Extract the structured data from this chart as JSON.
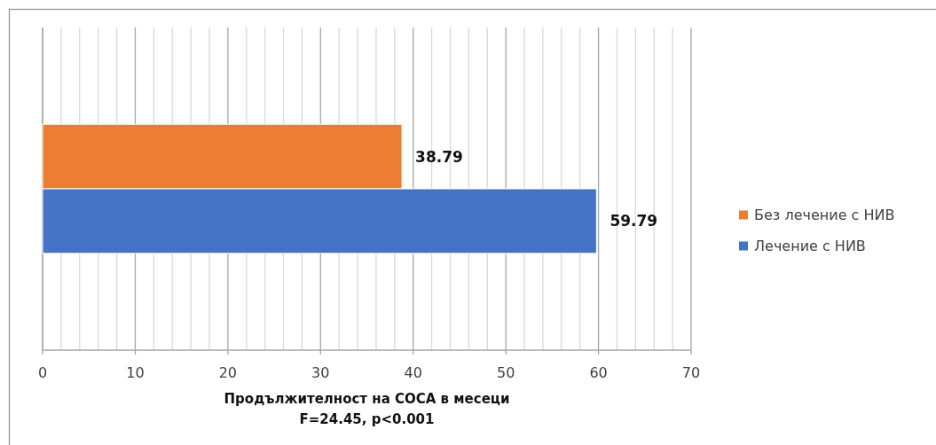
{
  "chart_data": {
    "type": "bar",
    "orientation": "horizontal",
    "categories": [
      null
    ],
    "series": [
      {
        "name": "Без лечение с НИВ",
        "color": "#ed7d31",
        "values": [
          38.79
        ]
      },
      {
        "name": "Лечение с НИВ",
        "color": "#4472c4",
        "values": [
          59.79
        ]
      }
    ],
    "xlim": [
      0,
      70
    ],
    "xticks": [
      0,
      {
        "value": 2,
        "label": null
      },
      {
        "value": 4,
        "label": null
      },
      {
        "value": 6,
        "label": null
      },
      {
        "value": 8,
        "label": null
      },
      10,
      {
        "value": 12,
        "label": null
      },
      {
        "value": 14,
        "label": null
      },
      {
        "value": 16,
        "label": null
      },
      {
        "value": 18,
        "label": null
      },
      20,
      {
        "value": 22,
        "label": null
      },
      {
        "value": 24,
        "label": null
      },
      {
        "value": 26,
        "label": null
      },
      {
        "value": 28,
        "label": null
      },
      30,
      {
        "value": 32,
        "label": null
      },
      {
        "value": 34,
        "label": null
      },
      {
        "value": 36,
        "label": null
      },
      {
        "value": 38,
        "label": null
      },
      40,
      {
        "value": 42,
        "label": null
      },
      {
        "value": 44,
        "label": null
      },
      {
        "value": 46,
        "label": null
      },
      {
        "value": 48,
        "label": null
      },
      50,
      {
        "value": 52,
        "label": null
      },
      {
        "value": 54,
        "label": null
      },
      {
        "value": 56,
        "label": null
      },
      {
        "value": 58,
        "label": null
      },
      60,
      {
        "value": 62,
        "label": null
      },
      {
        "value": 64,
        "label": null
      },
      {
        "value": 66,
        "label": null
      },
      {
        "value": 68,
        "label": null
      },
      70
    ],
    "grid": "x",
    "legend": "right",
    "data_labels": true,
    "xlabel": "Продължителност на СОСА в месеци",
    "annotations": [
      "F=24.45, p<0.001"
    ]
  }
}
